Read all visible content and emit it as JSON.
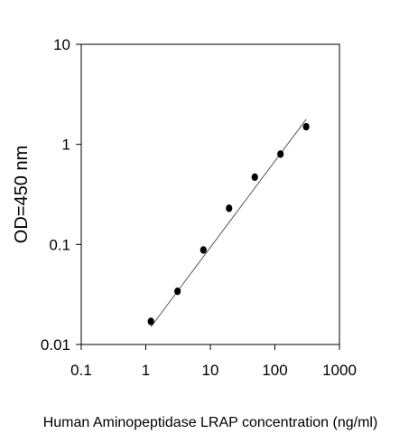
{
  "chart_data": {
    "type": "scatter",
    "title": "",
    "xlabel": "Human Aminopeptidase LRAP concentration (ng/ml)",
    "ylabel": "OD=450 nm",
    "xscale": "log",
    "yscale": "log",
    "xlim": [
      0.1,
      1000
    ],
    "ylim": [
      0.01,
      10
    ],
    "xticks": [
      0.1,
      1,
      10,
      100,
      1000
    ],
    "xtick_labels": [
      "0.1",
      "1",
      "10",
      "100",
      "1000"
    ],
    "yticks": [
      0.01,
      0.1,
      1,
      10
    ],
    "ytick_labels": [
      "0.01",
      "0.1",
      "1",
      "10"
    ],
    "grid": false,
    "legend": "none",
    "series": [
      {
        "points": [
          {
            "x": 1.2,
            "y": 0.017
          },
          {
            "x": 3.1,
            "y": 0.034
          },
          {
            "x": 7.8,
            "y": 0.088
          },
          {
            "x": 19.5,
            "y": 0.23
          },
          {
            "x": 48.8,
            "y": 0.47
          },
          {
            "x": 122,
            "y": 0.8
          },
          {
            "x": 305,
            "y": 1.5
          }
        ],
        "marker_color": "#000000"
      }
    ],
    "fit_line": {
      "x": [
        1.2,
        305
      ],
      "y": [
        0.015,
        1.78
      ],
      "color": "#555555"
    }
  }
}
